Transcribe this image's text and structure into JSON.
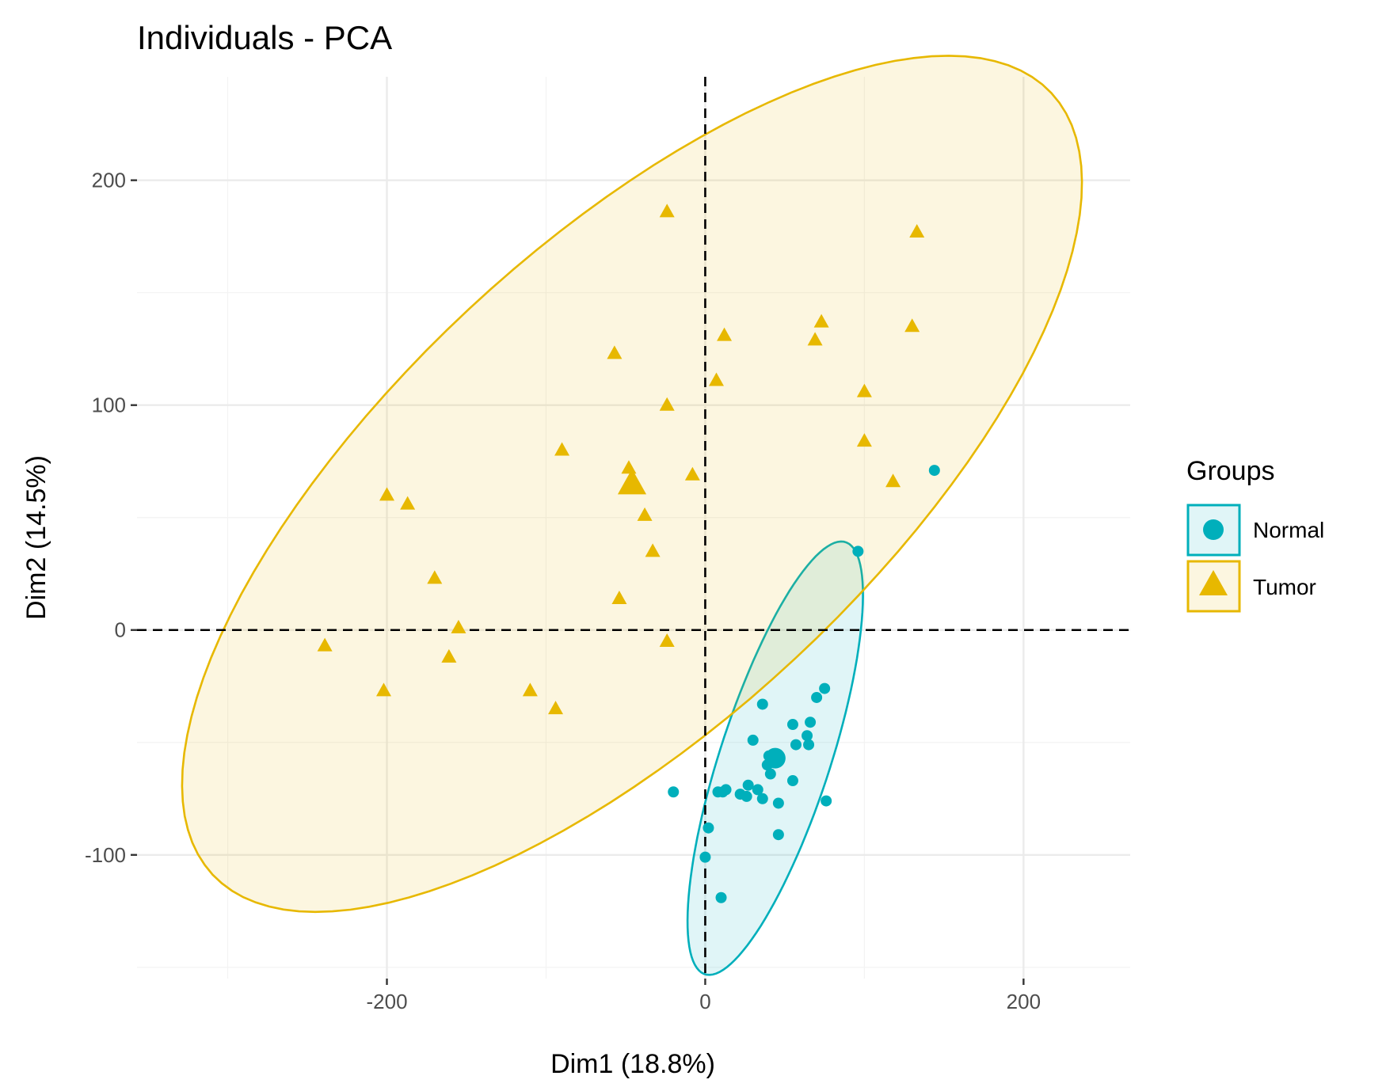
{
  "chart_data": {
    "type": "scatter",
    "title": "Individuals - PCA",
    "xlabel": "Dim1 (18.8%)",
    "ylabel": "Dim2 (14.5%)",
    "xlim": [
      -357,
      267
    ],
    "ylim": [
      -155,
      246
    ],
    "x_ticks": [
      -200,
      0,
      200
    ],
    "x_tick_labels": [
      "-200",
      "0",
      "200"
    ],
    "y_ticks": [
      -100,
      0,
      100,
      200
    ],
    "y_tick_labels": [
      "-100",
      "0",
      "100",
      "200"
    ],
    "grid": true,
    "reference_lines": {
      "x": 0,
      "y": 0,
      "style": "dashed"
    },
    "legend": {
      "title": "Groups",
      "position": "right"
    },
    "series": [
      {
        "name": "Normal",
        "color": "#00AFBB",
        "marker": "circle",
        "points": [
          [
            144,
            71
          ],
          [
            96,
            35
          ],
          [
            75,
            -26
          ],
          [
            70,
            -30
          ],
          [
            36,
            -33
          ],
          [
            55,
            -42
          ],
          [
            66,
            -41
          ],
          [
            30,
            -49
          ],
          [
            64,
            -47
          ],
          [
            57,
            -51
          ],
          [
            65,
            -51
          ],
          [
            40,
            -56
          ],
          [
            43,
            -55
          ],
          [
            39,
            -60
          ],
          [
            41,
            -64
          ],
          [
            45,
            -58
          ],
          [
            55,
            -67
          ],
          [
            27,
            -69
          ],
          [
            33,
            -71
          ],
          [
            36,
            -75
          ],
          [
            26,
            -74
          ],
          [
            22,
            -73
          ],
          [
            13,
            -71
          ],
          [
            8,
            -72
          ],
          [
            11,
            -72
          ],
          [
            46,
            -77
          ],
          [
            76,
            -76
          ],
          [
            -20,
            -72
          ],
          [
            2,
            -88
          ],
          [
            46,
            -91
          ],
          [
            0,
            -101
          ],
          [
            10,
            -119
          ]
        ],
        "centroid": [
          44,
          -57
        ],
        "ellipse": {
          "cx": 44,
          "cy": -57,
          "rx": 106,
          "ry": 33,
          "angle_deg": 64
        }
      },
      {
        "name": "Tumor",
        "color": "#E7B800",
        "marker": "triangle",
        "points": [
          [
            -24,
            186
          ],
          [
            133,
            177
          ],
          [
            73,
            137
          ],
          [
            130,
            135
          ],
          [
            12,
            131
          ],
          [
            69,
            129
          ],
          [
            -57,
            123
          ],
          [
            7,
            111
          ],
          [
            100,
            106
          ],
          [
            -24,
            100
          ],
          [
            100,
            84
          ],
          [
            -90,
            80
          ],
          [
            -48,
            72
          ],
          [
            -8,
            69
          ],
          [
            118,
            66
          ],
          [
            -200,
            60
          ],
          [
            -187,
            56
          ],
          [
            -38,
            51
          ],
          [
            -33,
            35
          ],
          [
            -170,
            23
          ],
          [
            -54,
            14
          ],
          [
            -155,
            1
          ],
          [
            -24,
            -5
          ],
          [
            -239,
            -7
          ],
          [
            -161,
            -12
          ],
          [
            -202,
            -27
          ],
          [
            -110,
            -27
          ],
          [
            -94,
            -35
          ]
        ],
        "centroid": [
          -46,
          65
        ],
        "ellipse": {
          "cx": -46,
          "cy": 65,
          "rx": 319,
          "ry": 120,
          "angle_deg": 30
        }
      }
    ]
  }
}
